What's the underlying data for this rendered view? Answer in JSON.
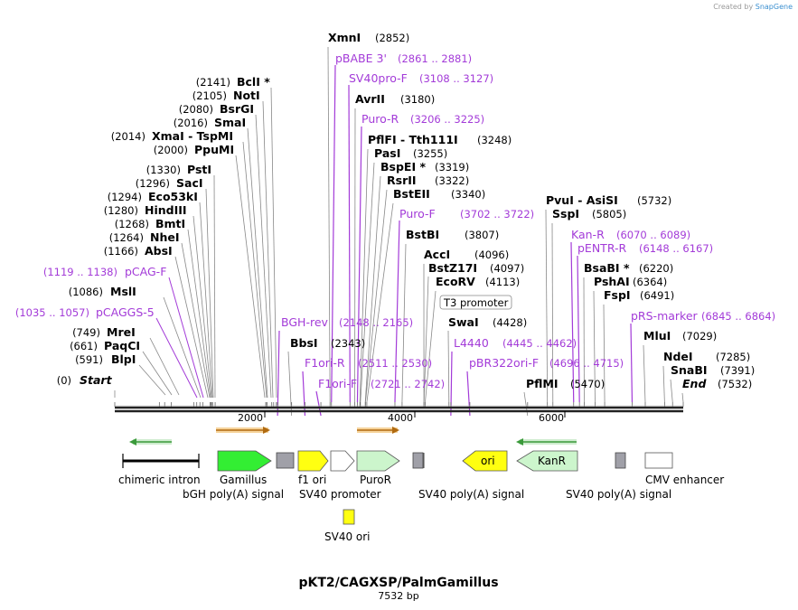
{
  "watermark": {
    "prefix": "Created by",
    "brand": "SnapGene"
  },
  "map": {
    "title": "pKT2/CAGXSP/PalmGamillus",
    "length_label": "7532 bp",
    "length": 7532,
    "ruler_ticks": [
      "2000",
      "4000",
      "6000"
    ]
  },
  "sites_left": [
    {
      "pos": "(0)",
      "name": "Start",
      "star": false,
      "italic": true,
      "bp": 0
    },
    {
      "pos": "(591)",
      "name": "BlpI",
      "star": false,
      "bp": 591
    },
    {
      "pos": "(661)",
      "name": "PaqCI",
      "star": false,
      "bp": 661
    },
    {
      "pos": "(749)",
      "name": "MreI",
      "star": false,
      "bp": 749
    },
    {
      "pos": "(1035 .. 1057)",
      "name": "pCAGGS-5",
      "primer": true,
      "bp": 1046
    },
    {
      "pos": "(1086)",
      "name": "MslI",
      "star": false,
      "bp": 1086
    },
    {
      "pos": "(1119 .. 1138)",
      "name": "pCAG-F",
      "primer": true,
      "bp": 1128
    },
    {
      "pos": "(1166)",
      "name": "AbsI",
      "star": false,
      "bp": 1166
    },
    {
      "pos": "(1264)",
      "name": "NheI",
      "star": false,
      "bp": 1264
    },
    {
      "pos": "(1268)",
      "name": "BmtI",
      "star": false,
      "bp": 1268
    },
    {
      "pos": "(1280)",
      "name": "HindIII",
      "star": false,
      "bp": 1280
    },
    {
      "pos": "(1294)",
      "name": "Eco53kI",
      "star": false,
      "bp": 1294
    },
    {
      "pos": "(1296)",
      "name": "SacI",
      "star": false,
      "bp": 1296
    },
    {
      "pos": "(1330)",
      "name": "PstI",
      "star": false,
      "bp": 1330
    },
    {
      "pos": "(2000)",
      "name": "PpuMI",
      "star": false,
      "bp": 2000
    },
    {
      "pos": "(2014)",
      "name": "XmaI",
      "name2": "TspMI",
      "star": false,
      "bp": 2014
    },
    {
      "pos": "(2016)",
      "name": "SmaI",
      "star": false,
      "bp": 2016
    },
    {
      "pos": "(2080)",
      "name": "BsrGI",
      "star": false,
      "bp": 2080
    },
    {
      "pos": "(2105)",
      "name": "NotI",
      "star": false,
      "bp": 2105
    },
    {
      "pos": "(2141)",
      "name": "BclI",
      "star": true,
      "bp": 2141
    }
  ],
  "sites_right": [
    {
      "name": "XmnI",
      "pos": "(2852)",
      "bp": 2852
    },
    {
      "name": "pBABE 3'",
      "pos": "(2861 .. 2881)",
      "primer": true,
      "bp": 2871
    },
    {
      "name": "SV40pro-F",
      "pos": "(3108 .. 3127)",
      "primer": true,
      "bp": 3117
    },
    {
      "name": "AvrII",
      "pos": "(3180)",
      "bp": 3180
    },
    {
      "name": "Puro-R",
      "pos": "(3206 .. 3225)",
      "primer": true,
      "bp": 3215
    },
    {
      "name": "PflFI",
      "name2": "Tth111I",
      "pos": "(3248)",
      "bp": 3248
    },
    {
      "name": "PasI",
      "pos": "(3255)",
      "bp": 3255
    },
    {
      "name": "BspEI",
      "star": true,
      "pos": "(3319)",
      "bp": 3319
    },
    {
      "name": "RsrII",
      "pos": "(3322)",
      "bp": 3322
    },
    {
      "name": "BstEII",
      "pos": "(3340)",
      "bp": 3340
    },
    {
      "name": "Puro-F",
      "pos": "(3702 .. 3722)",
      "primer": true,
      "bp": 3712
    },
    {
      "name": "BstBI",
      "pos": "(3807)",
      "bp": 3807
    },
    {
      "name": "AccI",
      "pos": "(4096)",
      "bp": 4096
    },
    {
      "name": "BstZ17I",
      "pos": "(4097)",
      "bp": 4097
    },
    {
      "name": "EcoRV",
      "pos": "(4113)",
      "bp": 4113
    },
    {
      "name": "SwaI",
      "pos": "(4428)",
      "bp": 4428
    },
    {
      "name": "PvuI",
      "name2": "AsiSI",
      "pos": "(5732)",
      "bp": 5732
    },
    {
      "name": "SspI",
      "pos": "(5805)",
      "bp": 5805
    },
    {
      "name": "Kan-R",
      "pos": "(6070 .. 6089)",
      "primer": true,
      "bp": 6080
    },
    {
      "name": "pENTR-R",
      "pos": "(6148 .. 6167)",
      "primer": true,
      "bp": 6157
    },
    {
      "name": "BsaBI",
      "star": true,
      "pos": "(6220)",
      "bp": 6220
    },
    {
      "name": "PshAI",
      "pos": "(6364)",
      "bp": 6364
    },
    {
      "name": "FspI",
      "pos": "(6491)",
      "bp": 6491
    },
    {
      "name": "pRS-marker",
      "pos": "(6845 .. 6864)",
      "primer": true,
      "bp": 6855
    },
    {
      "name": "MluI",
      "pos": "(7029)",
      "bp": 7029
    },
    {
      "name": "NdeI",
      "pos": "(7285)",
      "bp": 7285
    },
    {
      "name": "SnaBI",
      "pos": "(7391)",
      "bp": 7391
    },
    {
      "name": "End",
      "italic": true,
      "pos": "(7532)",
      "bp": 7532
    }
  ],
  "sites_bottom": [
    {
      "name": "BGH-rev",
      "pos": "(2148 .. 2165)",
      "primer": true,
      "bp": 2157
    },
    {
      "name": "BbsI",
      "pos": "(2343)",
      "bp": 2343
    },
    {
      "name": "F1ori-R",
      "pos": "(2511 .. 2530)",
      "primer": true,
      "bp": 2520
    },
    {
      "name": "F1ori-F",
      "pos": "(2721 .. 2742)",
      "primer": true,
      "bp": 2731
    },
    {
      "name": "L4440",
      "pos": "(4445 .. 4462)",
      "primer": true,
      "bp": 4453
    },
    {
      "name": "pBR322ori-F",
      "pos": "(4696 .. 4715)",
      "primer": true,
      "bp": 4705
    },
    {
      "name": "PflMI",
      "pos": "(5470)",
      "bp": 5470
    }
  ],
  "t3_promoter": {
    "label": "T3 promoter",
    "bp": 4113
  },
  "features": [
    {
      "name": "chimeric intron",
      "type": "intron"
    },
    {
      "name": "Gamillus",
      "type": "cds",
      "color": "#33ee33"
    },
    {
      "name": "bGH poly(A) signal",
      "type": "polyA",
      "color": "#a0a0a8"
    },
    {
      "name": "f1 ori",
      "type": "ori",
      "color": "#ffff11"
    },
    {
      "name": "SV40 promoter",
      "type": "promoter",
      "color": "#ffffff"
    },
    {
      "name": "PuroR",
      "type": "cds",
      "color": "#ccf5cc"
    },
    {
      "name": "SV40 poly(A) signal",
      "type": "polyA",
      "color": "#a0a0a8"
    },
    {
      "name": "ori",
      "type": "ori",
      "color": "#ffff11"
    },
    {
      "name": "KanR",
      "type": "cds",
      "color": "#ccf5cc"
    },
    {
      "name": "SV40 poly(A) signal",
      "type": "polyA",
      "color": "#a0a0a8"
    },
    {
      "name": "CMV enhancer",
      "type": "enhancer",
      "color": "#ffffff"
    },
    {
      "name": "SV40 ori",
      "type": "ori",
      "color": "#ffff11"
    }
  ],
  "colors": {
    "primer": "#a33bd8",
    "enzyme": "#000000",
    "backbone": "#222222",
    "orf_orange": "#e2a14a",
    "orf_green": "#6ac46a"
  }
}
